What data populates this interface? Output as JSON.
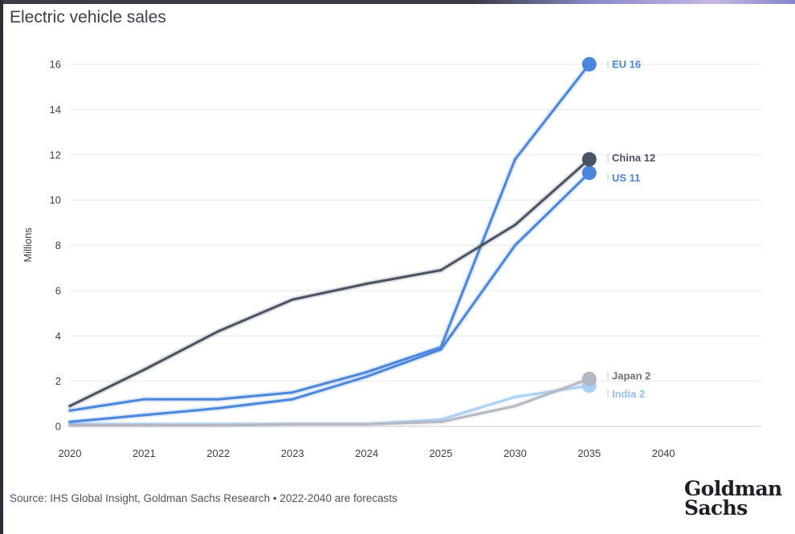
{
  "title": "Electric vehicle sales",
  "source": "Source: IHS Global Insight, Goldman Sachs Research • 2022-2040 are forecasts",
  "logo": {
    "line1": "Goldman",
    "line2": "Sachs"
  },
  "chart_data": {
    "type": "line",
    "title": "Electric vehicle sales",
    "xlabel": "",
    "ylabel": "Millions",
    "ylim": [
      0,
      16
    ],
    "yticks": [
      0,
      2,
      4,
      6,
      8,
      10,
      12,
      14,
      16
    ],
    "categories": [
      "2020",
      "2021",
      "2022",
      "2023",
      "2024",
      "2025",
      "2030",
      "2035",
      "2040"
    ],
    "grid": "horizontal",
    "series": [
      {
        "name": "India",
        "label": "India 2",
        "color": "#a9d0f5",
        "values": [
          0.1,
          0.1,
          0.1,
          0.1,
          0.1,
          0.3,
          1.3,
          1.8,
          null
        ]
      },
      {
        "name": "Japan",
        "label": "Japan 2",
        "color": "#b4b8c2",
        "values": [
          0.05,
          0.05,
          0.05,
          0.1,
          0.1,
          0.2,
          0.9,
          2.1,
          null
        ]
      },
      {
        "name": "US",
        "label": "US 11",
        "color": "#4a86dc",
        "values": [
          0.2,
          0.5,
          0.8,
          1.2,
          2.2,
          3.4,
          8.0,
          11.2,
          null
        ]
      },
      {
        "name": "EU",
        "label": "EU 16",
        "color": "#4a86dc",
        "values": [
          0.7,
          1.2,
          1.2,
          1.5,
          2.4,
          3.5,
          11.8,
          16.0,
          null
        ]
      },
      {
        "name": "China",
        "label": "China 12",
        "color": "#4a5363",
        "values": [
          0.9,
          2.5,
          4.2,
          5.6,
          6.3,
          6.9,
          8.9,
          11.8,
          null
        ]
      }
    ]
  }
}
